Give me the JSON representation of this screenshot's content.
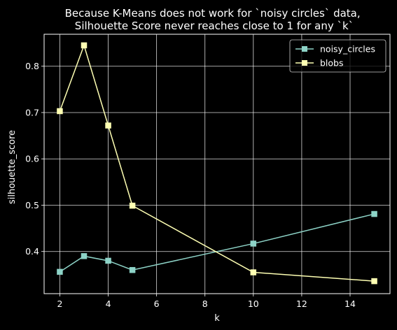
{
  "chart_data": {
    "type": "line",
    "title": "Because K-Means does not work for `noisy circles` data,\nSilhouette Score never reaches close to 1 for any `k`",
    "xlabel": "k",
    "ylabel": "silhouette_score",
    "x": [
      2,
      3,
      4,
      5,
      10,
      15
    ],
    "xlim": [
      1.35,
      15.65
    ],
    "ylim": [
      0.309,
      0.869
    ],
    "xticks": [
      2,
      4,
      6,
      8,
      10,
      12,
      14
    ],
    "yticks": [
      0.4,
      0.5,
      0.6,
      0.7,
      0.8
    ],
    "grid": true,
    "legend_position": "top-right",
    "series": [
      {
        "name": "noisy_circles",
        "color": "#8dd3c7",
        "marker": "square",
        "values": [
          0.356,
          0.39,
          0.38,
          0.36,
          0.417,
          0.481
        ]
      },
      {
        "name": "blobs",
        "color": "#feffb3",
        "marker": "square",
        "values": [
          0.703,
          0.845,
          0.672,
          0.499,
          0.355,
          0.336
        ]
      }
    ]
  }
}
